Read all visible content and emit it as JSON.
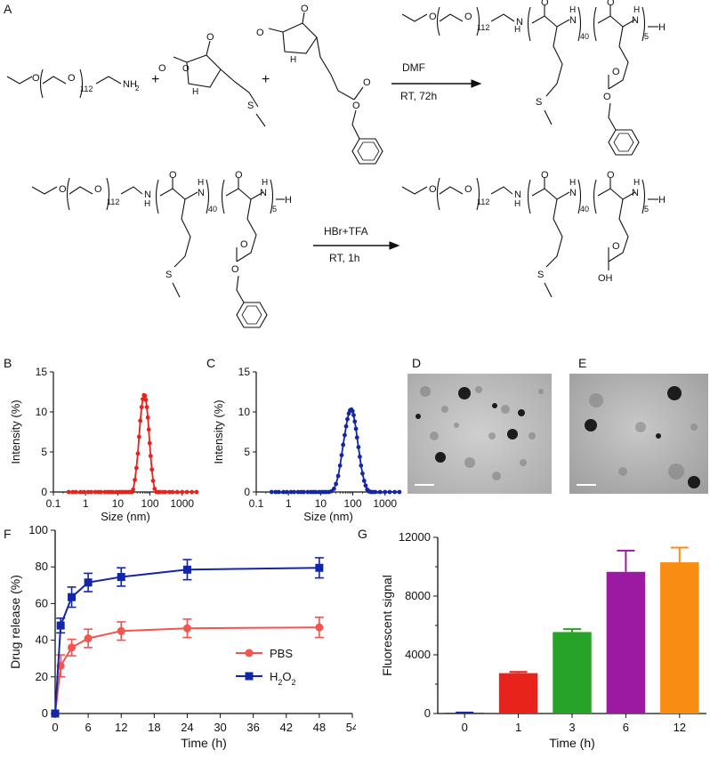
{
  "panel_letters": {
    "A": "A",
    "B": "B",
    "C": "C",
    "D": "D",
    "E": "E",
    "F": "F",
    "G": "G"
  },
  "scheme": {
    "reagent": "MeO-PEG(112)-NH2",
    "conditions_1_top": "DMF",
    "conditions_1_bottom": "RT, 72h",
    "conditions_2_top": "HBr+TFA",
    "conditions_2_bottom": "RT, 1h",
    "subscripts": {
      "peg": "112",
      "met": "40",
      "glu": "5"
    },
    "atoms": {
      "O": "O",
      "N": "N",
      "H": "H",
      "NH": "NH",
      "HN": "HN",
      "S": "S",
      "OH": "OH",
      "NH2": "NH",
      "NH2_sub": "2"
    },
    "plus": "+"
  },
  "chart_data": [
    {
      "panel": "B",
      "type": "line",
      "xscale": "log",
      "xlabel": "Size (nm)",
      "ylabel": "Intensity (%)",
      "xticks": [
        "0.1",
        "1",
        "10",
        "100",
        "1000"
      ],
      "yticks": [
        "0",
        "5",
        "10",
        "15"
      ],
      "ylim": [
        0,
        15
      ],
      "xlim": [
        0.1,
        3000
      ],
      "color": "#e8231b",
      "x": [
        0.3,
        0.4,
        0.5,
        0.7,
        0.9,
        1.2,
        1.5,
        2,
        2.5,
        3,
        4,
        5,
        6,
        7,
        9,
        11,
        13,
        15,
        18,
        22,
        26,
        30,
        34,
        38,
        42,
        46,
        50,
        55,
        60,
        65,
        70,
        75,
        80,
        86,
        92,
        98,
        105,
        115,
        125,
        140,
        160,
        180,
        200,
        250,
        300,
        400,
        500,
        700,
        1000,
        1400,
        2000,
        2800
      ],
      "y": [
        0,
        0,
        0,
        0,
        0,
        0,
        0,
        0,
        0,
        0,
        0,
        0,
        0,
        0,
        0,
        0,
        0,
        0,
        0,
        0,
        0,
        0.3,
        1.5,
        3.0,
        4.8,
        6.9,
        8.9,
        10.6,
        11.6,
        12.1,
        12.0,
        11.5,
        10.6,
        9.3,
        7.8,
        6.1,
        4.5,
        2.8,
        1.4,
        0.4,
        0,
        0,
        0,
        0,
        0,
        0,
        0,
        0,
        0,
        0,
        0,
        0
      ]
    },
    {
      "panel": "C",
      "type": "line",
      "xscale": "log",
      "xlabel": "Size (nm)",
      "ylabel": "Intensity (%)",
      "xticks": [
        "0.1",
        "1",
        "10",
        "100",
        "1000"
      ],
      "yticks": [
        "0",
        "5",
        "10",
        "15"
      ],
      "ylim": [
        0,
        15
      ],
      "xlim": [
        0.1,
        3000
      ],
      "color": "#1426a8",
      "x": [
        0.3,
        0.4,
        0.5,
        0.7,
        0.9,
        1.2,
        1.5,
        2,
        2.5,
        3,
        4,
        5,
        6,
        7,
        9,
        11,
        13,
        15,
        18,
        22,
        26,
        30,
        35,
        40,
        45,
        50,
        56,
        62,
        68,
        75,
        82,
        90,
        98,
        106,
        115,
        125,
        135,
        150,
        165,
        180,
        200,
        225,
        250,
        280,
        320,
        360,
        420,
        500,
        700,
        1000,
        1400,
        2000,
        2800
      ],
      "y": [
        0,
        0,
        0,
        0,
        0,
        0,
        0,
        0,
        0,
        0,
        0,
        0,
        0,
        0,
        0,
        0,
        0,
        0,
        0,
        0.1,
        0.4,
        1.0,
        2.0,
        3.3,
        4.6,
        5.9,
        7.1,
        8.2,
        9.1,
        9.8,
        10.2,
        10.3,
        10.1,
        9.6,
        8.8,
        7.9,
        6.8,
        5.6,
        4.4,
        3.3,
        2.3,
        1.4,
        0.8,
        0.3,
        0.1,
        0,
        0,
        0,
        0,
        0,
        0,
        0,
        0
      ]
    },
    {
      "panel": "F",
      "type": "line",
      "xlabel": "Time (h)",
      "ylabel": "Drug release (%)",
      "xticks": [
        "0",
        "6",
        "12",
        "18",
        "24",
        "30",
        "36",
        "42",
        "48",
        "54"
      ],
      "yticks": [
        "0",
        "20",
        "40",
        "60",
        "80",
        "100"
      ],
      "xlim": [
        0,
        54
      ],
      "ylim": [
        0,
        100
      ],
      "series": [
        {
          "name": "PBS",
          "marker": "circle",
          "color": "#f25450",
          "x": [
            0,
            1,
            3,
            6,
            12,
            24,
            48
          ],
          "y": [
            0,
            26,
            36,
            41,
            45,
            46.5,
            47
          ],
          "err": [
            0,
            6,
            4.5,
            5,
            5,
            5,
            5.5
          ]
        },
        {
          "name": "H₂O₂",
          "name_main": "H",
          "name_sub1": "2",
          "name_mid": "O",
          "name_sub2": "2",
          "marker": "square",
          "color": "#1426a8",
          "x": [
            0,
            1,
            3,
            6,
            12,
            24,
            48
          ],
          "y": [
            0,
            48,
            63.5,
            71.5,
            74.5,
            78.5,
            79.5
          ],
          "err": [
            0,
            4,
            5.5,
            5,
            5,
            5.5,
            5.5
          ]
        }
      ]
    },
    {
      "panel": "G",
      "type": "bar",
      "xlabel": "Time (h)",
      "ylabel": "Fluorescent signal",
      "categories": [
        "0",
        "1",
        "3",
        "6",
        "12"
      ],
      "values": [
        50,
        2750,
        5550,
        9650,
        10300
      ],
      "err": [
        20,
        80,
        200,
        1450,
        1000
      ],
      "colors": [
        "#1426a8",
        "#e8231b",
        "#27a327",
        "#9b1aa1",
        "#f98d14"
      ],
      "yticks": [
        "0",
        "4000",
        "8000",
        "12000"
      ],
      "ylim": [
        0,
        12000
      ]
    }
  ]
}
